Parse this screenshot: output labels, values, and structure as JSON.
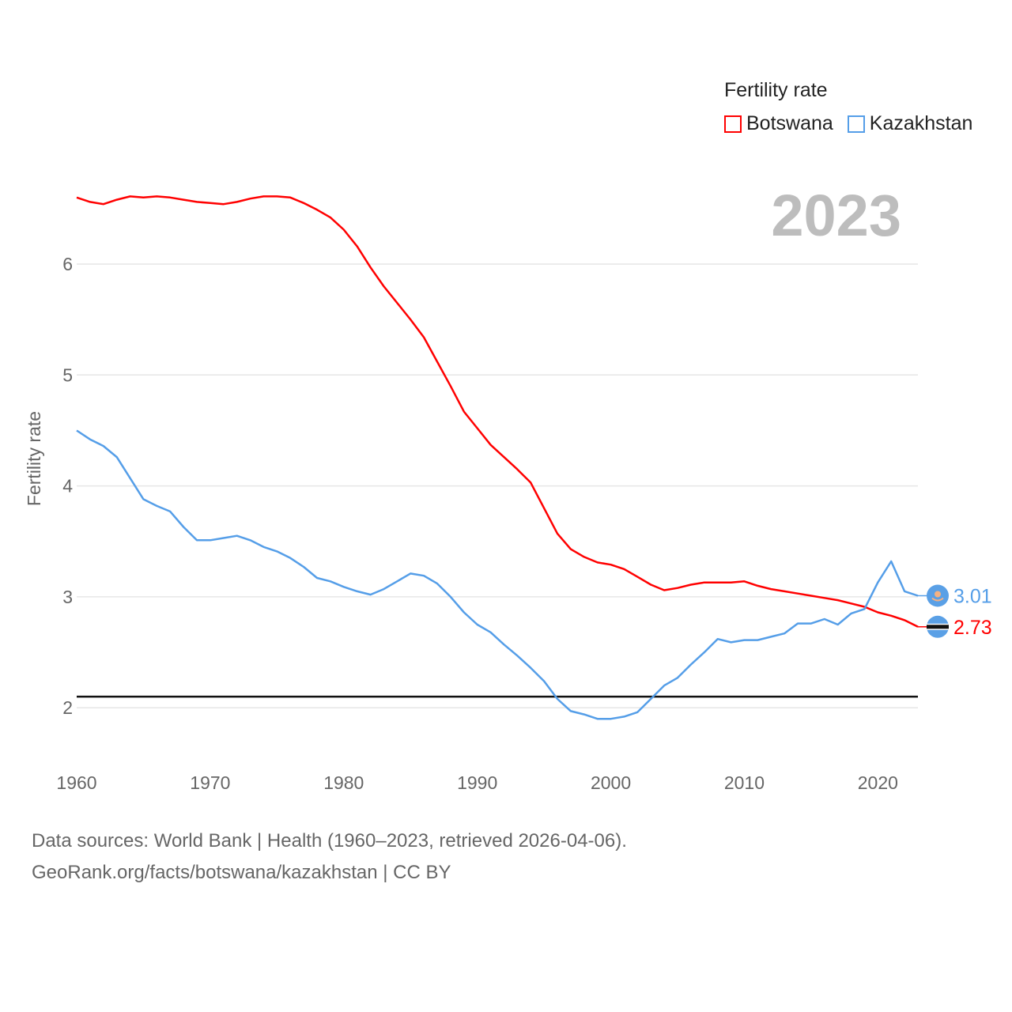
{
  "chart_data": {
    "type": "line",
    "title": "2023",
    "xlabel": "",
    "ylabel": "Fertility rate",
    "xlim": [
      1960,
      2023
    ],
    "ylim": [
      1.6,
      6.75
    ],
    "xticks": [
      1960,
      1970,
      1980,
      1990,
      2000,
      2010,
      2020
    ],
    "yticks": [
      2,
      3,
      4,
      5,
      6
    ],
    "grid": true,
    "legend": {
      "title": "Fertility rate",
      "placement": "top-right"
    },
    "reference_line": 2.1,
    "x": [
      1960,
      1961,
      1962,
      1963,
      1964,
      1965,
      1966,
      1967,
      1968,
      1969,
      1970,
      1971,
      1972,
      1973,
      1974,
      1975,
      1976,
      1977,
      1978,
      1979,
      1980,
      1981,
      1982,
      1983,
      1984,
      1985,
      1986,
      1987,
      1988,
      1989,
      1990,
      1991,
      1992,
      1993,
      1994,
      1995,
      1996,
      1997,
      1998,
      1999,
      2000,
      2001,
      2002,
      2003,
      2004,
      2005,
      2006,
      2007,
      2008,
      2009,
      2010,
      2011,
      2012,
      2013,
      2014,
      2015,
      2016,
      2017,
      2018,
      2019,
      2020,
      2021,
      2022,
      2023
    ],
    "series": [
      {
        "name": "Botswana",
        "color": "#ff0000",
        "end_label": "2.73",
        "flag": "botswana-flag",
        "values": [
          6.6,
          6.56,
          6.54,
          6.58,
          6.61,
          6.6,
          6.61,
          6.6,
          6.58,
          6.56,
          6.55,
          6.54,
          6.56,
          6.59,
          6.61,
          6.61,
          6.6,
          6.55,
          6.49,
          6.42,
          6.31,
          6.16,
          5.97,
          5.8,
          5.65,
          5.5,
          5.34,
          5.12,
          4.9,
          4.67,
          4.52,
          4.37,
          4.26,
          4.15,
          4.03,
          3.8,
          3.57,
          3.43,
          3.36,
          3.31,
          3.29,
          3.25,
          3.18,
          3.11,
          3.06,
          3.08,
          3.11,
          3.13,
          3.13,
          3.13,
          3.14,
          3.1,
          3.07,
          3.05,
          3.03,
          3.01,
          2.99,
          2.97,
          2.94,
          2.91,
          2.86,
          2.83,
          2.79,
          2.73
        ]
      },
      {
        "name": "Kazakhstan",
        "color": "#559ee8",
        "end_label": "3.01",
        "flag": "kazakhstan-flag",
        "values": [
          4.5,
          4.42,
          4.36,
          4.26,
          4.07,
          3.88,
          3.82,
          3.77,
          3.63,
          3.51,
          3.51,
          3.53,
          3.55,
          3.51,
          3.45,
          3.41,
          3.35,
          3.27,
          3.17,
          3.14,
          3.09,
          3.05,
          3.02,
          3.07,
          3.14,
          3.21,
          3.19,
          3.12,
          3.0,
          2.86,
          2.75,
          2.68,
          2.57,
          2.47,
          2.36,
          2.24,
          2.08,
          1.97,
          1.94,
          1.9,
          1.9,
          1.92,
          1.96,
          2.08,
          2.2,
          2.27,
          2.39,
          2.5,
          2.62,
          2.59,
          2.61,
          2.61,
          2.64,
          2.67,
          2.76,
          2.76,
          2.8,
          2.75,
          2.85,
          2.89,
          3.13,
          3.32,
          3.05,
          3.01
        ]
      }
    ]
  },
  "footer": {
    "line1": "Data sources: World Bank | Health (1960–2023, retrieved 2026-04-06).",
    "line2": "GeoRank.org/facts/botswana/kazakhstan | CC BY"
  }
}
